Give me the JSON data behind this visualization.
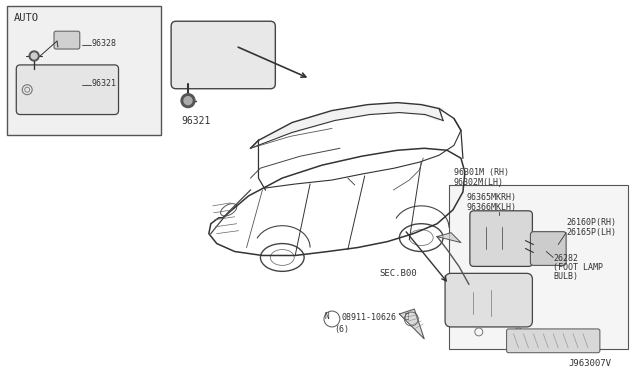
{
  "bg_color": "#f2f2f2",
  "diagram_id": "J963007V",
  "inset_label": "AUTO",
  "part_96328": "96328",
  "part_96321_inset": "96321",
  "mirror_label": "96321",
  "sec_label": "SEC.B00",
  "bolt_label": "08911-10626",
  "bolt_count": "(6)",
  "label_96301": "96301M (RH)",
  "label_96302": "96302M(LH)",
  "label_96365": "96365MKRH)",
  "label_96366": "96366MKLH)",
  "label_26160": "26160P(RH)",
  "label_26165": "26165P(LH)",
  "label_26282": "26282",
  "label_footlamp": "(FOOT LAMP",
  "label_bulb": "BULB)",
  "line_color": "#333333",
  "bg_white": "#ffffff"
}
